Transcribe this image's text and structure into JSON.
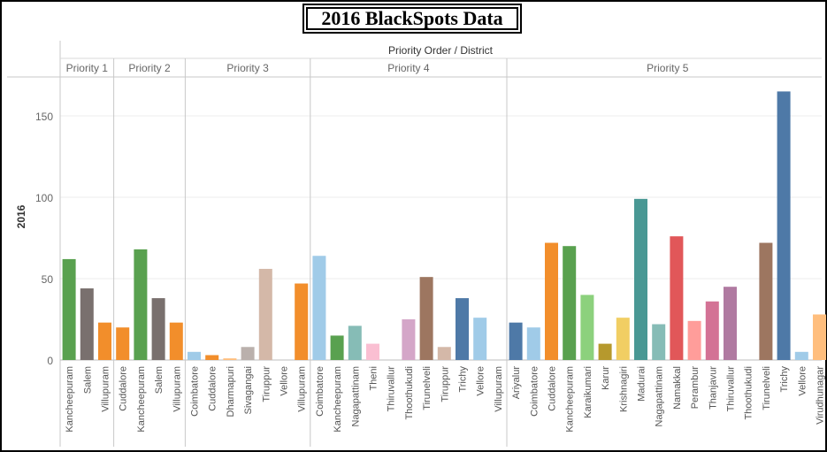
{
  "title": "2016 BlackSpots Data",
  "chart_data": {
    "type": "bar",
    "header": "Priority Order  /  District",
    "ylabel": "2016",
    "ylim": [
      0,
      175
    ],
    "yticks": [
      0,
      50,
      100,
      150
    ],
    "groups": [
      {
        "name": "Priority 1",
        "bars": [
          {
            "district": "Kancheepuram",
            "value": 62,
            "color": "#59A14F"
          },
          {
            "district": "Salem",
            "value": 44,
            "color": "#79706E"
          },
          {
            "district": "Villupuram",
            "value": 23,
            "color": "#F28E2B"
          }
        ]
      },
      {
        "name": "Priority 2",
        "bars": [
          {
            "district": "Cuddalore",
            "value": 20,
            "color": "#F28E2B"
          },
          {
            "district": "Kancheepuram",
            "value": 68,
            "color": "#59A14F"
          },
          {
            "district": "Salem",
            "value": 38,
            "color": "#79706E"
          },
          {
            "district": "Villupuram",
            "value": 23,
            "color": "#F28E2B"
          }
        ]
      },
      {
        "name": "Priority 3",
        "bars": [
          {
            "district": "Coimbatore",
            "value": 5,
            "color": "#A0CBE8"
          },
          {
            "district": "Cuddalore",
            "value": 3,
            "color": "#F28E2B"
          },
          {
            "district": "Dharmapuri",
            "value": 1,
            "color": "#FFBE7D"
          },
          {
            "district": "Sivagangai",
            "value": 8,
            "color": "#BAB0AC"
          },
          {
            "district": "Tiruppur",
            "value": 56,
            "color": "#D4B8A8"
          },
          {
            "district": "Vellore",
            "value": 0,
            "color": "#A0CBE8"
          },
          {
            "district": "Villupuram",
            "value": 47,
            "color": "#F28E2B"
          }
        ]
      },
      {
        "name": "Priority 4",
        "bars": [
          {
            "district": "Coimbatore",
            "value": 64,
            "color": "#A0CBE8"
          },
          {
            "district": "Kancheepuram",
            "value": 15,
            "color": "#59A14F"
          },
          {
            "district": "Nagapattinam",
            "value": 21,
            "color": "#86BCB6"
          },
          {
            "district": "Theni",
            "value": 10,
            "color": "#FABFD2"
          },
          {
            "district": "Thiruvallur",
            "value": 0,
            "color": "#B07AA1"
          },
          {
            "district": "Thoothukudi",
            "value": 25,
            "color": "#D4A6C8"
          },
          {
            "district": "Tirunelveli",
            "value": 51,
            "color": "#9D7660"
          },
          {
            "district": "Tiruppur",
            "value": 8,
            "color": "#D4B8A8"
          },
          {
            "district": "Trichy",
            "value": 38,
            "color": "#4E79A7"
          },
          {
            "district": "Vellore",
            "value": 26,
            "color": "#A0CBE8"
          },
          {
            "district": "Villupuram",
            "value": 0,
            "color": "#F28E2B"
          }
        ]
      },
      {
        "name": "Priority 5",
        "bars": [
          {
            "district": "Ariyalur",
            "value": 23,
            "color": "#4E79A7"
          },
          {
            "district": "Coimbatore",
            "value": 20,
            "color": "#A0CBE8"
          },
          {
            "district": "Cuddalore",
            "value": 72,
            "color": "#F28E2B"
          },
          {
            "district": "Kancheepuram",
            "value": 70,
            "color": "#59A14F"
          },
          {
            "district": "Karaikumari",
            "value": 40,
            "color": "#8CD17D"
          },
          {
            "district": "Karur",
            "value": 10,
            "color": "#B6992D"
          },
          {
            "district": "Krishnagiri",
            "value": 26,
            "color": "#F1CE63"
          },
          {
            "district": "Madurai",
            "value": 99,
            "color": "#499894"
          },
          {
            "district": "Nagapattinam",
            "value": 22,
            "color": "#86BCB6"
          },
          {
            "district": "Namakkal",
            "value": 76,
            "color": "#E15759"
          },
          {
            "district": "Perambur",
            "value": 24,
            "color": "#FF9D9A"
          },
          {
            "district": "Thanjavur",
            "value": 36,
            "color": "#D37295"
          },
          {
            "district": "Thiruvallur",
            "value": 45,
            "color": "#B07AA1"
          },
          {
            "district": "Thoothukudi",
            "value": 0,
            "color": "#D4A6C8"
          },
          {
            "district": "Tirunelveli",
            "value": 72,
            "color": "#9D7660"
          },
          {
            "district": "Trichy",
            "value": 165,
            "color": "#4E79A7"
          },
          {
            "district": "Vellore",
            "value": 5,
            "color": "#A0CBE8"
          },
          {
            "district": "Virudhunagar",
            "value": 28,
            "color": "#FFBE7D"
          }
        ]
      }
    ]
  }
}
